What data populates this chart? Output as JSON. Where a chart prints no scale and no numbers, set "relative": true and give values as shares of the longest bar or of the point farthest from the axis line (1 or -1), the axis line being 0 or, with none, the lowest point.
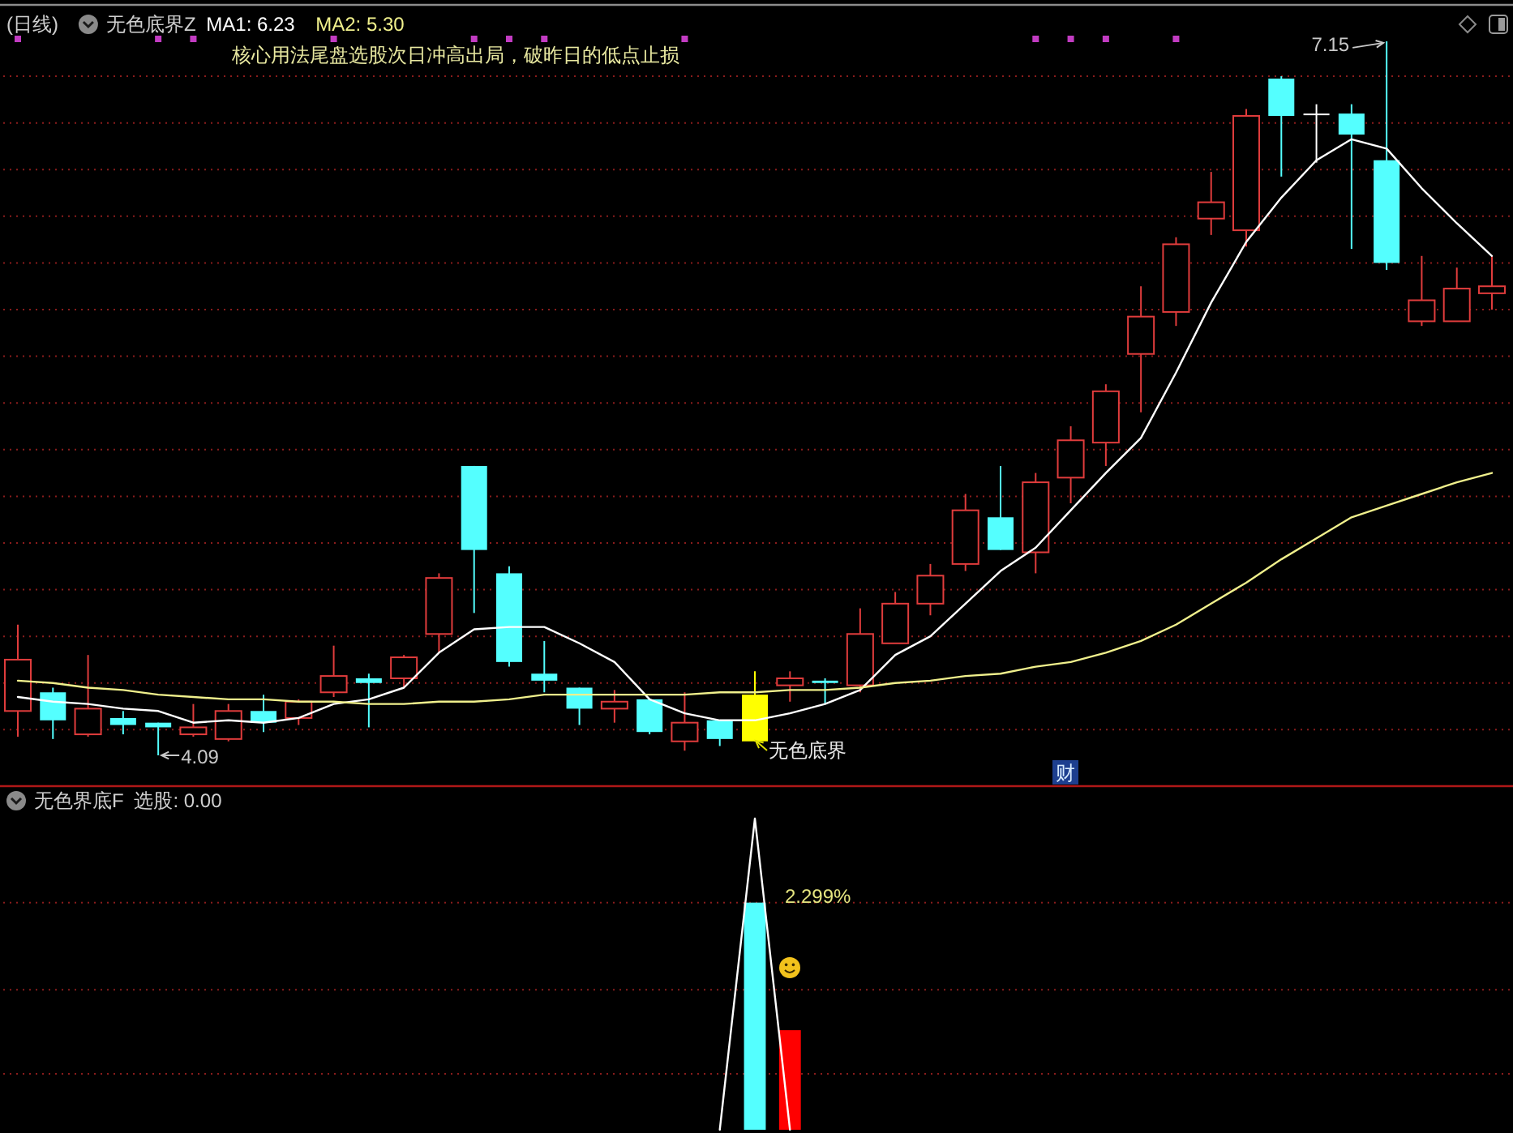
{
  "chart_data": [
    {
      "type": "candlestick",
      "title": "(日线)",
      "subtitle": "无色底界Z",
      "grid": "y",
      "categories": [
        null,
        null,
        null,
        null,
        null,
        null,
        null,
        null,
        null,
        null,
        null,
        null,
        null,
        null,
        null,
        null,
        null,
        null,
        null,
        null,
        null,
        null,
        null,
        null,
        null,
        null,
        null,
        null,
        null,
        null,
        null,
        null,
        null,
        null,
        null,
        null,
        null,
        null,
        null,
        null,
        null,
        null,
        null
      ],
      "ohlc": [
        [
          4.28,
          4.65,
          4.17,
          4.5
        ],
        [
          4.36,
          4.38,
          4.16,
          4.24
        ],
        [
          4.18,
          4.52,
          4.17,
          4.29
        ],
        [
          4.25,
          4.28,
          4.18,
          4.22
        ],
        [
          4.23,
          4.23,
          4.09,
          4.21
        ],
        [
          4.18,
          4.31,
          4.17,
          4.21
        ],
        [
          4.16,
          4.31,
          4.15,
          4.28
        ],
        [
          4.28,
          4.35,
          4.19,
          4.23
        ],
        [
          4.25,
          4.33,
          4.22,
          4.32
        ],
        [
          4.36,
          4.56,
          4.34,
          4.43
        ],
        [
          4.42,
          4.44,
          4.21,
          4.4
        ],
        [
          4.42,
          4.52,
          4.38,
          4.51
        ],
        [
          4.61,
          4.87,
          4.53,
          4.85
        ],
        [
          5.33,
          5.33,
          4.7,
          4.97
        ],
        [
          4.87,
          4.9,
          4.47,
          4.49
        ],
        [
          4.44,
          4.58,
          4.36,
          4.41
        ],
        [
          4.38,
          4.38,
          4.22,
          4.29
        ],
        [
          4.29,
          4.37,
          4.23,
          4.32
        ],
        [
          4.33,
          4.33,
          4.18,
          4.19
        ],
        [
          4.15,
          4.36,
          4.11,
          4.23
        ],
        [
          4.24,
          4.24,
          4.13,
          4.16
        ],
        [
          4.35,
          4.45,
          4.15,
          4.15
        ],
        [
          4.39,
          4.45,
          4.32,
          4.42
        ],
        [
          4.41,
          4.42,
          4.31,
          4.4
        ],
        [
          4.39,
          4.72,
          4.36,
          4.61
        ],
        [
          4.57,
          4.79,
          4.57,
          4.74
        ],
        [
          4.74,
          4.91,
          4.69,
          4.86
        ],
        [
          4.91,
          5.21,
          4.88,
          5.14
        ],
        [
          5.11,
          5.33,
          4.97,
          4.97
        ],
        [
          4.96,
          5.3,
          4.87,
          5.26
        ],
        [
          5.28,
          5.5,
          5.17,
          5.44
        ],
        [
          5.43,
          5.68,
          5.33,
          5.65
        ],
        [
          5.81,
          6.1,
          5.56,
          5.97
        ],
        [
          5.99,
          6.31,
          5.93,
          6.28
        ],
        [
          6.39,
          6.59,
          6.32,
          6.46
        ],
        [
          6.34,
          6.86,
          6.27,
          6.83
        ],
        [
          6.99,
          7.0,
          6.57,
          6.83
        ],
        [
          6.84,
          6.88,
          6.63,
          6.84
        ],
        [
          6.84,
          6.88,
          6.26,
          6.75
        ],
        [
          6.64,
          7.15,
          6.17,
          6.2
        ],
        [
          5.95,
          6.23,
          5.93,
          6.04
        ],
        [
          5.95,
          6.18,
          5.95,
          6.09
        ],
        [
          6.07,
          6.23,
          6.0,
          6.1
        ]
      ],
      "colors": [
        "#e03c3c",
        "#54ffff",
        "#e03c3c",
        "#54ffff",
        "#54ffff",
        "#e03c3c",
        "#e03c3c",
        "#54ffff",
        "#e03c3c",
        "#e03c3c",
        "#54ffff",
        "#e03c3c",
        "#e03c3c",
        "#54ffff",
        "#54ffff",
        "#54ffff",
        "#54ffff",
        "#e03c3c",
        "#54ffff",
        "#e03c3c",
        "#54ffff",
        "#ffff00",
        "#e03c3c",
        "#54ffff",
        "#e03c3c",
        "#e03c3c",
        "#e03c3c",
        "#e03c3c",
        "#54ffff",
        "#e03c3c",
        "#e03c3c",
        "#e03c3c",
        "#e03c3c",
        "#e03c3c",
        "#e03c3c",
        "#e03c3c",
        "#54ffff",
        "#ffffff",
        "#54ffff",
        "#54ffff",
        "#e03c3c",
        "#e03c3c",
        "#e03c3c"
      ],
      "series": [
        {
          "name": "MA1: 6.23",
          "type": "line",
          "color": "#ffffff",
          "values": [
            4.34,
            4.32,
            4.31,
            4.29,
            4.28,
            4.23,
            4.24,
            4.23,
            4.25,
            4.31,
            4.33,
            4.38,
            4.53,
            4.63,
            4.64,
            4.64,
            4.57,
            4.49,
            4.33,
            4.27,
            4.24,
            4.24,
            4.27,
            4.31,
            4.37,
            4.52,
            4.6,
            4.74,
            4.88,
            4.98,
            5.14,
            5.3,
            5.45,
            5.73,
            6.03,
            6.29,
            6.48,
            6.64,
            6.73,
            6.69,
            6.52,
            6.37,
            6.23
          ]
        },
        {
          "name": "MA2: 5.30",
          "type": "line",
          "color": "#f0f08c",
          "values": [
            4.41,
            4.4,
            4.38,
            4.37,
            4.35,
            4.34,
            4.33,
            4.33,
            4.32,
            4.32,
            4.31,
            4.31,
            4.32,
            4.32,
            4.33,
            4.35,
            4.35,
            4.35,
            4.35,
            4.35,
            4.36,
            4.36,
            4.37,
            4.37,
            4.38,
            4.4,
            4.41,
            4.43,
            4.44,
            4.47,
            4.49,
            4.53,
            4.58,
            4.65,
            4.74,
            4.83,
            4.93,
            5.02,
            5.11,
            5.16,
            5.21,
            5.26,
            5.3
          ]
        },
        {
          "type": "scatter",
          "marker": "square",
          "color": "#c23cc2",
          "values": [
            7.16,
            null,
            null,
            null,
            7.16,
            7.16,
            null,
            null,
            null,
            7.16,
            null,
            null,
            null,
            7.16,
            7.16,
            7.16,
            null,
            null,
            null,
            7.16,
            null,
            null,
            null,
            null,
            null,
            null,
            null,
            null,
            null,
            7.16,
            7.16,
            7.16,
            null,
            7.16,
            null,
            null,
            null,
            null,
            null,
            null,
            null,
            null,
            null
          ]
        }
      ],
      "yticks": [
        {
          "value": 4.2,
          "label": null
        },
        {
          "value": 4.4,
          "label": null
        },
        {
          "value": 4.6,
          "label": null
        },
        {
          "value": 4.8,
          "label": null
        },
        {
          "value": 5.0,
          "label": null
        },
        {
          "value": 5.2,
          "label": null
        },
        {
          "value": 5.4,
          "label": null
        },
        {
          "value": 5.6,
          "label": null
        },
        {
          "value": 5.8,
          "label": null
        },
        {
          "value": 6.0,
          "label": null
        },
        {
          "value": 6.2,
          "label": null
        },
        {
          "value": 6.4,
          "label": null
        },
        {
          "value": 6.6,
          "label": null
        },
        {
          "value": 6.8,
          "label": null
        },
        {
          "value": 7.0,
          "label": null
        }
      ],
      "annotations": [
        "核心用法尾盘选股次日冲高出局，破昨日的低点止损",
        "7.15",
        "4.09",
        "无色底界",
        "财"
      ]
    },
    {
      "type": "bar",
      "title": "无色界底F",
      "subtitle": "选股: 0.00",
      "relative": true,
      "categories": [
        null,
        null,
        null,
        null,
        null,
        null,
        null,
        null,
        null,
        null,
        null,
        null,
        null,
        null,
        null,
        null,
        null,
        null,
        null,
        null,
        null,
        null,
        null,
        null,
        null,
        null,
        null,
        null,
        null,
        null,
        null,
        null,
        null,
        null,
        null,
        null,
        null,
        null,
        null,
        null,
        null,
        null,
        null
      ],
      "ref_lines": [
        {
          "axis": "y",
          "value": 0.73,
          "color": "#8a1c1c",
          "line_style": "dotted"
        },
        {
          "axis": "y",
          "value": 0.45,
          "color": "#8a1c1c",
          "line_style": "dotted"
        },
        {
          "axis": "y",
          "value": 0.18,
          "color": "#8a1c1c",
          "line_style": "dotted"
        }
      ],
      "series": [
        {
          "type": "line",
          "color": "#ffffff",
          "values": [
            null,
            null,
            null,
            null,
            null,
            null,
            null,
            null,
            null,
            null,
            null,
            null,
            null,
            null,
            null,
            null,
            null,
            null,
            null,
            null,
            0,
            1,
            0,
            null,
            null,
            null,
            null,
            null,
            null,
            null,
            null,
            null,
            null,
            null,
            null,
            null,
            null,
            null,
            null,
            null,
            null,
            null,
            null
          ]
        },
        {
          "type": "bar",
          "color": "#54ffff",
          "values": [
            null,
            null,
            null,
            null,
            null,
            null,
            null,
            null,
            null,
            null,
            null,
            null,
            null,
            null,
            null,
            null,
            null,
            null,
            null,
            null,
            null,
            0.73,
            null,
            null,
            null,
            null,
            null,
            null,
            null,
            null,
            null,
            null,
            null,
            null,
            null,
            null,
            null,
            null,
            null,
            null,
            null,
            null,
            null
          ]
        },
        {
          "type": "bar",
          "color": "#ff0000",
          "values": [
            null,
            null,
            null,
            null,
            null,
            null,
            null,
            null,
            null,
            null,
            null,
            null,
            null,
            null,
            null,
            null,
            null,
            null,
            null,
            null,
            null,
            null,
            0.32,
            null,
            null,
            null,
            null,
            null,
            null,
            null,
            null,
            null,
            null,
            null,
            null,
            null,
            null,
            null,
            null,
            null,
            null,
            null,
            null
          ]
        }
      ],
      "annotations": [
        "2.299%"
      ]
    }
  ]
}
